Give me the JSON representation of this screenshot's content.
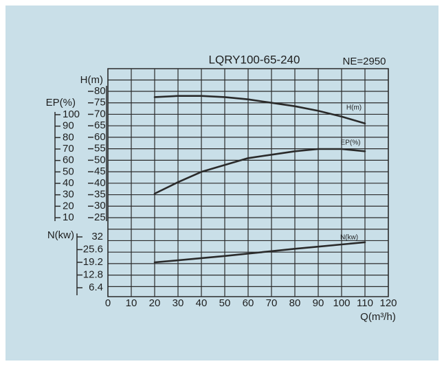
{
  "chart_data": {
    "type": "line",
    "title": "LQRY100-65-240",
    "subtitle": "NE=2950",
    "x_label": "Q(m³/h)",
    "y_label": "H(m)",
    "y2_label": "EP(%)",
    "y3_label": "N(kw)",
    "x": [
      20,
      30,
      40,
      50,
      60,
      70,
      80,
      90,
      100,
      110
    ],
    "xlim": [
      0,
      120
    ],
    "xticks": [
      0,
      10,
      20,
      30,
      40,
      50,
      60,
      70,
      80,
      90,
      100,
      110,
      120
    ],
    "ylim": [
      25,
      80
    ],
    "yticks": [
      80,
      75,
      70,
      65,
      60,
      55,
      50,
      45,
      40,
      35,
      30,
      25
    ],
    "y2lim": [
      10,
      100
    ],
    "y2ticks": [
      100,
      90,
      80,
      70,
      60,
      50,
      40,
      30,
      20,
      10
    ],
    "y3lim": [
      6.4,
      32
    ],
    "y3ticks": [
      32,
      25.6,
      19.2,
      12.8,
      6.4
    ],
    "grid": true,
    "series": [
      {
        "name": "H(m)",
        "color": "#2a2a2a",
        "axis": "y",
        "values": [
          77.5,
          78,
          78,
          77.5,
          76.5,
          75,
          73.5,
          71.5,
          69,
          66
        ]
      },
      {
        "name": "EP(%)",
        "color": "#2a2a2a",
        "axis": "y2",
        "values": [
          31,
          41,
          50,
          56,
          62,
          65,
          68,
          70,
          70,
          68
        ]
      },
      {
        "name": "N(kw)",
        "color": "#2a2a2a",
        "axis": "y3",
        "values": [
          19.2,
          20.2,
          21.3,
          22.4,
          23.6,
          24.8,
          26,
          27.1,
          28.2,
          29.3
        ]
      }
    ]
  }
}
